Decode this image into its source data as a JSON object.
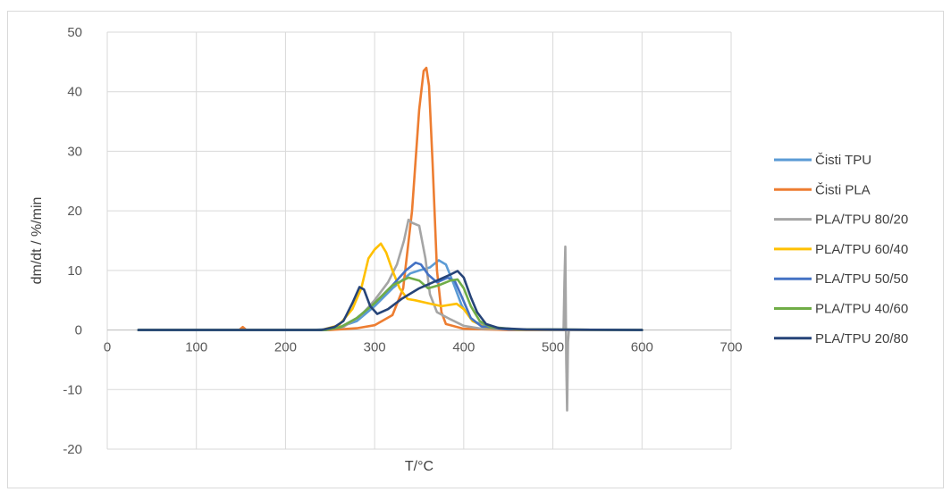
{
  "chart_data": {
    "type": "line",
    "title": "",
    "xlabel": "T/°C",
    "ylabel": "dm/dt / %/min",
    "xlim": [
      0,
      700
    ],
    "ylim": [
      -20,
      50
    ],
    "xticks": [
      0,
      100,
      200,
      300,
      400,
      500,
      600,
      700
    ],
    "yticks": [
      -20,
      -10,
      0,
      10,
      20,
      30,
      40,
      50
    ],
    "grid": true,
    "legend_position": "right",
    "series": [
      {
        "name": "Čisti TPU",
        "color": "#5b9bd5",
        "points": [
          [
            35,
            0
          ],
          [
            230,
            0
          ],
          [
            255,
            0.2
          ],
          [
            280,
            1.5
          ],
          [
            300,
            4
          ],
          [
            320,
            7
          ],
          [
            340,
            9.5
          ],
          [
            350,
            10
          ],
          [
            362,
            10.5
          ],
          [
            372,
            11.7
          ],
          [
            380,
            11
          ],
          [
            388,
            8
          ],
          [
            398,
            4
          ],
          [
            410,
            1.5
          ],
          [
            430,
            0.4
          ],
          [
            460,
            0.1
          ],
          [
            600,
            0
          ]
        ]
      },
      {
        "name": "Čisti PLA",
        "color": "#ed7d31",
        "points": [
          [
            35,
            0
          ],
          [
            148,
            0
          ],
          [
            152,
            0.5
          ],
          [
            156,
            0
          ],
          [
            250,
            0
          ],
          [
            280,
            0.3
          ],
          [
            300,
            0.8
          ],
          [
            320,
            2.5
          ],
          [
            332,
            7
          ],
          [
            342,
            20
          ],
          [
            350,
            37
          ],
          [
            355,
            43.5
          ],
          [
            358,
            44
          ],
          [
            361,
            41
          ],
          [
            365,
            28
          ],
          [
            370,
            10
          ],
          [
            375,
            3
          ],
          [
            380,
            1
          ],
          [
            400,
            0.2
          ],
          [
            450,
            0
          ],
          [
            600,
            0
          ]
        ]
      },
      {
        "name": "PLA/TPU 80/20",
        "color": "#a5a5a5",
        "points": [
          [
            35,
            0
          ],
          [
            240,
            0
          ],
          [
            265,
            0.5
          ],
          [
            285,
            2.5
          ],
          [
            300,
            5
          ],
          [
            315,
            8
          ],
          [
            325,
            11
          ],
          [
            333,
            15
          ],
          [
            338,
            18.5
          ],
          [
            342,
            18
          ],
          [
            350,
            17.5
          ],
          [
            357,
            12
          ],
          [
            362,
            6
          ],
          [
            370,
            3
          ],
          [
            385,
            1.8
          ],
          [
            400,
            0.7
          ],
          [
            420,
            0.2
          ],
          [
            500,
            0
          ],
          [
            512,
            0
          ],
          [
            513,
            8
          ],
          [
            514,
            14
          ],
          [
            515,
            -5
          ],
          [
            516,
            -13.5
          ],
          [
            517,
            -2
          ],
          [
            518,
            0
          ],
          [
            530,
            0
          ],
          [
            600,
            0
          ]
        ]
      },
      {
        "name": "PLA/TPU 60/40",
        "color": "#ffc000",
        "points": [
          [
            35,
            0
          ],
          [
            240,
            0
          ],
          [
            260,
            0.8
          ],
          [
            275,
            3.5
          ],
          [
            285,
            7
          ],
          [
            293,
            12
          ],
          [
            300,
            13.5
          ],
          [
            307,
            14.5
          ],
          [
            313,
            13
          ],
          [
            320,
            10
          ],
          [
            328,
            7
          ],
          [
            337,
            5.2
          ],
          [
            345,
            5
          ],
          [
            360,
            4.5
          ],
          [
            375,
            4
          ],
          [
            392,
            4.4
          ],
          [
            400,
            3.5
          ],
          [
            410,
            1.5
          ],
          [
            425,
            0.4
          ],
          [
            460,
            0.1
          ],
          [
            600,
            0
          ]
        ]
      },
      {
        "name": "PLA/TPU 50/50",
        "color": "#4472c4",
        "points": [
          [
            35,
            0
          ],
          [
            245,
            0
          ],
          [
            262,
            0.5
          ],
          [
            280,
            2
          ],
          [
            300,
            4.5
          ],
          [
            320,
            7.5
          ],
          [
            335,
            10
          ],
          [
            346,
            11.3
          ],
          [
            352,
            11
          ],
          [
            360,
            9.3
          ],
          [
            370,
            8
          ],
          [
            382,
            8.8
          ],
          [
            390,
            8.2
          ],
          [
            398,
            5.5
          ],
          [
            408,
            2
          ],
          [
            420,
            0.6
          ],
          [
            450,
            0.1
          ],
          [
            600,
            0
          ]
        ]
      },
      {
        "name": "PLA/TPU 40/60",
        "color": "#70ad47",
        "points": [
          [
            35,
            0
          ],
          [
            245,
            0
          ],
          [
            262,
            0.5
          ],
          [
            280,
            2
          ],
          [
            300,
            4.5
          ],
          [
            320,
            7.5
          ],
          [
            338,
            8.8
          ],
          [
            350,
            8.3
          ],
          [
            360,
            7
          ],
          [
            372,
            7.5
          ],
          [
            385,
            8.3
          ],
          [
            393,
            8.5
          ],
          [
            400,
            7
          ],
          [
            408,
            4
          ],
          [
            418,
            1.5
          ],
          [
            430,
            0.5
          ],
          [
            460,
            0.1
          ],
          [
            600,
            0
          ]
        ]
      },
      {
        "name": "PLA/TPU 20/80",
        "color": "#264478",
        "points": [
          [
            35,
            0
          ],
          [
            240,
            0
          ],
          [
            255,
            0.5
          ],
          [
            265,
            1.5
          ],
          [
            275,
            4.5
          ],
          [
            283,
            7.2
          ],
          [
            288,
            6.8
          ],
          [
            295,
            4
          ],
          [
            303,
            2.7
          ],
          [
            315,
            3.5
          ],
          [
            330,
            5.2
          ],
          [
            350,
            7
          ],
          [
            370,
            8.3
          ],
          [
            385,
            9.3
          ],
          [
            393,
            9.9
          ],
          [
            400,
            8.8
          ],
          [
            408,
            5.5
          ],
          [
            415,
            3
          ],
          [
            425,
            1
          ],
          [
            440,
            0.3
          ],
          [
            470,
            0.1
          ],
          [
            600,
            0
          ]
        ]
      }
    ]
  }
}
